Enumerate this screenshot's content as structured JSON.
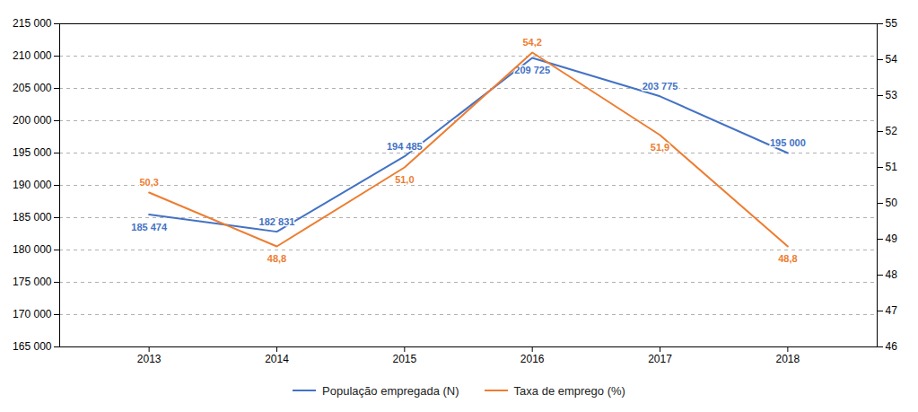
{
  "chart_data": {
    "type": "line",
    "x": [
      2013,
      2014,
      2015,
      2016,
      2017,
      2018
    ],
    "xlim": [
      2012.3,
      2018.7
    ],
    "xticks": [
      2013,
      2014,
      2015,
      2016,
      2017,
      2018
    ],
    "ylim": [
      165000,
      215000
    ],
    "yticks": [
      {
        "value": 165000,
        "label": "165 000"
      },
      {
        "value": 170000,
        "label": "170 000"
      },
      {
        "value": 175000,
        "label": "175 000"
      },
      {
        "value": 180000,
        "label": "180 000"
      },
      {
        "value": 185000,
        "label": "185 000"
      },
      {
        "value": 190000,
        "label": "190 000"
      },
      {
        "value": 195000,
        "label": "195 000"
      },
      {
        "value": 200000,
        "label": "200 000"
      },
      {
        "value": 205000,
        "label": "205 000"
      },
      {
        "value": 210000,
        "label": "210 000"
      },
      {
        "value": 215000,
        "label": "215 000"
      }
    ],
    "y2lim": [
      46,
      55
    ],
    "y2ticks": [
      46,
      47,
      48,
      49,
      50,
      51,
      52,
      53,
      54,
      55
    ],
    "grid": true,
    "legend": "bottom",
    "data_labels": true,
    "series": [
      {
        "name": "População empregada (N)",
        "color": "#4472C4",
        "values": [
          185474,
          182831,
          194485,
          209725,
          203775,
          195000
        ],
        "value_labels": [
          "185 474",
          "182 831",
          "194 485",
          "209 725",
          "203 775",
          "195 000"
        ]
      },
      {
        "name": "Taxa de emprego (%)",
        "color": "#ED7D31",
        "axis": "y2",
        "values": [
          50.3,
          48.8,
          51.0,
          54.2,
          51.9,
          48.8
        ],
        "value_labels": [
          "50,3",
          "48,8",
          "51,0",
          "54,2",
          "51,9",
          "48,8"
        ]
      }
    ]
  }
}
